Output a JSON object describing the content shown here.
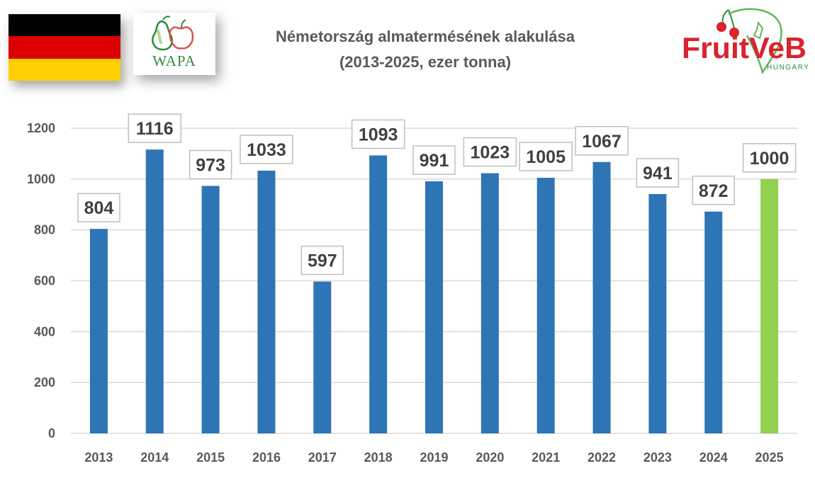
{
  "header": {
    "title_line1": "Németország almatermésének alakulása",
    "title_line2": "(2013-2025, ezer tonna)"
  },
  "logos": {
    "flag": {
      "name": "germany-flag",
      "colors": [
        "#000000",
        "#dd0000",
        "#ffce00"
      ]
    },
    "wapa": {
      "name": "wapa-logo",
      "text": "WAPA"
    },
    "fruitveb": {
      "name": "fruitveb-logo",
      "text_main": "FruitVeB",
      "text_sub": "HUNGARY"
    }
  },
  "chart_data": {
    "type": "bar",
    "title": "Németország almatermésének alakulása (2013-2025, ezer tonna)",
    "xlabel": "",
    "ylabel": "",
    "categories": [
      "2013",
      "2014",
      "2015",
      "2016",
      "2017",
      "2018",
      "2019",
      "2020",
      "2021",
      "2022",
      "2023",
      "2024",
      "2025"
    ],
    "values": [
      804,
      1116,
      973,
      1033,
      597,
      1093,
      991,
      1023,
      1005,
      1067,
      941,
      872,
      1000
    ],
    "ylim": [
      0,
      1200
    ],
    "yticks": [
      0,
      200,
      400,
      600,
      800,
      1000,
      1200
    ],
    "grid": true,
    "legend": "none",
    "colors": {
      "bar": "#2e75b6",
      "highlight": "#92d050",
      "grid": "#d9d9d9",
      "label_box": "#bfbfbf"
    },
    "highlight_categories": [
      "2025"
    ]
  }
}
